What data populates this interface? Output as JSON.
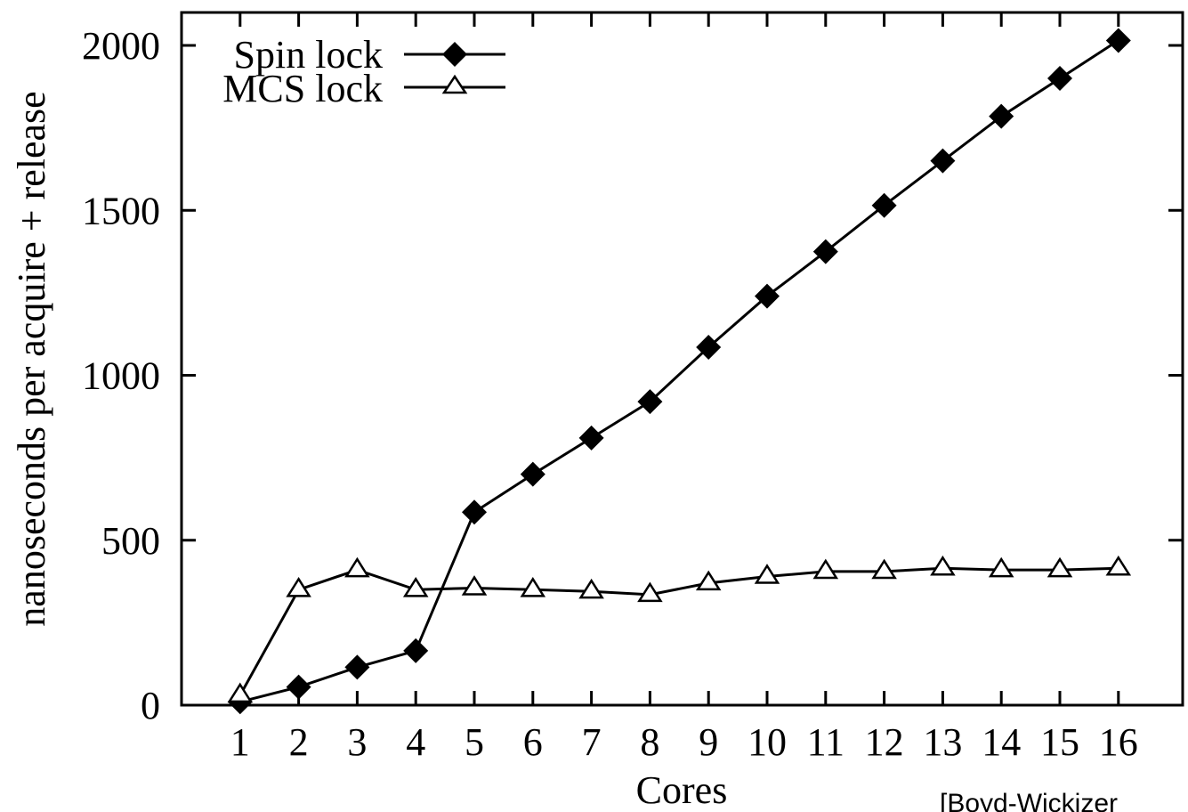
{
  "chart_data": {
    "type": "line",
    "xlabel": "Cores",
    "ylabel": "nanoseconds per acquire + release",
    "x": [
      1,
      2,
      3,
      4,
      5,
      6,
      7,
      8,
      9,
      10,
      11,
      12,
      13,
      14,
      15,
      16
    ],
    "xlim": [
      0,
      17
    ],
    "ylim": [
      0,
      2100
    ],
    "y_ticks": [
      0,
      500,
      1000,
      1500,
      2000
    ],
    "series": [
      {
        "name": "Spin lock",
        "marker": "filled-diamond",
        "values": [
          10,
          55,
          115,
          165,
          585,
          700,
          810,
          920,
          1085,
          1240,
          1375,
          1515,
          1650,
          1785,
          1900,
          2015
        ]
      },
      {
        "name": "MCS lock",
        "marker": "open-triangle",
        "values": [
          30,
          350,
          410,
          350,
          355,
          350,
          345,
          335,
          370,
          390,
          405,
          405,
          415,
          410,
          410,
          415
        ]
      }
    ],
    "grid": false,
    "legend_position": "top-left",
    "annotation": "[Boyd-Wickizer"
  }
}
